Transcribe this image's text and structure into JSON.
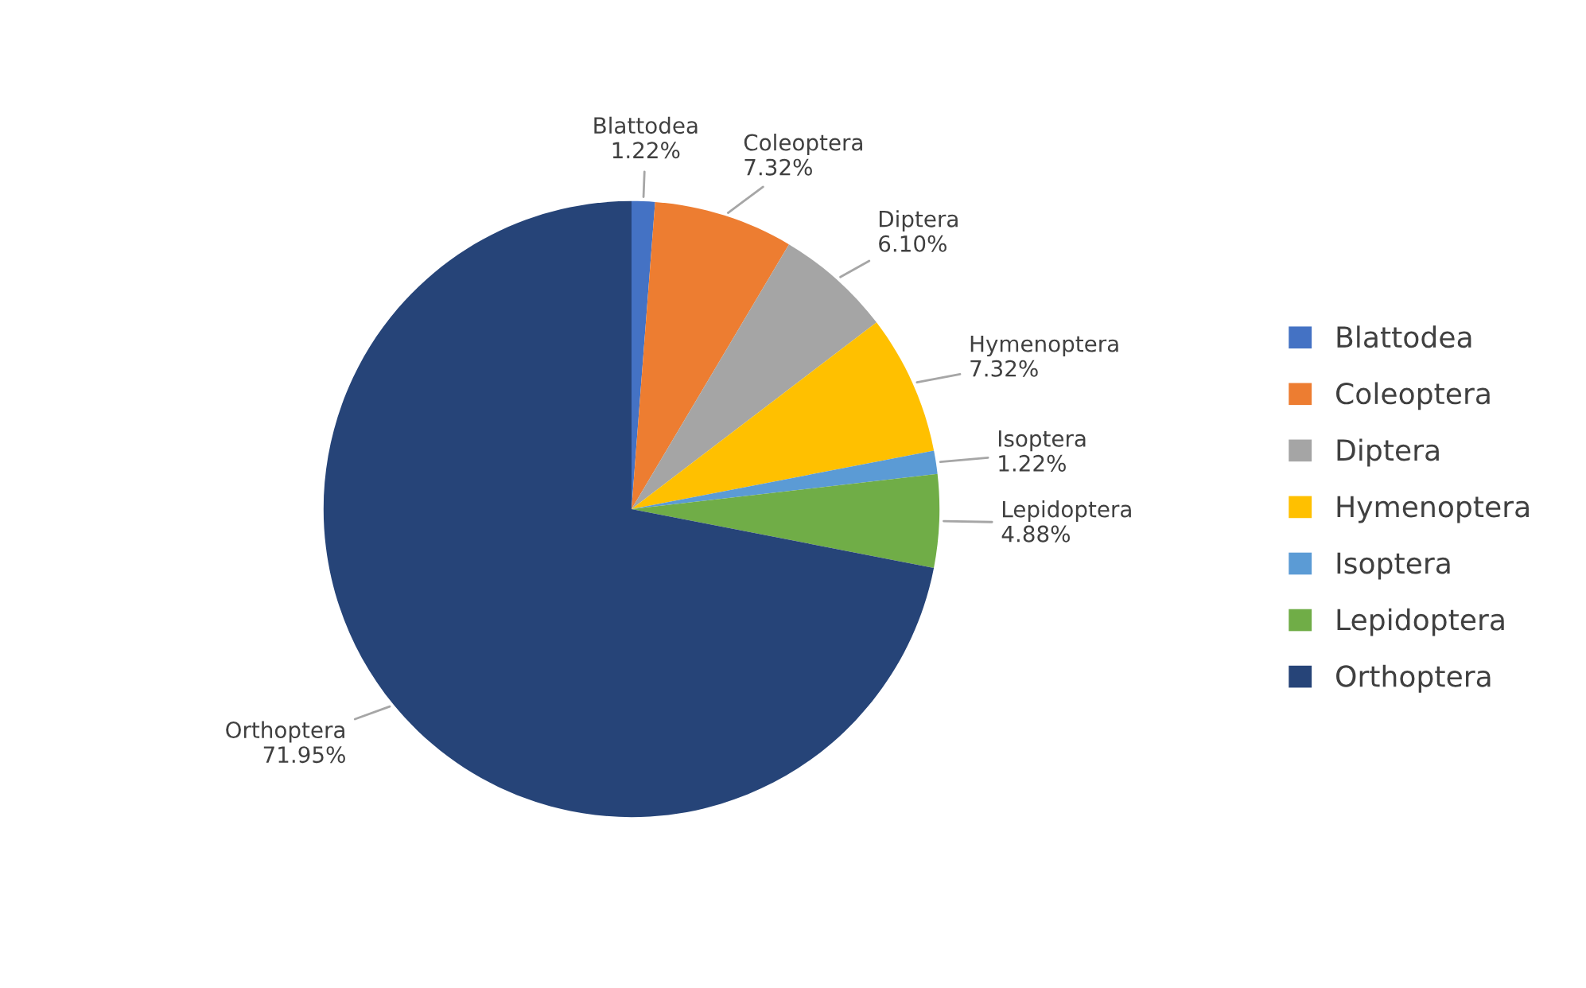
{
  "chart_data": {
    "type": "pie",
    "categories": [
      "Blattodea",
      "Coleoptera",
      "Diptera",
      "Hymenoptera",
      "Isoptera",
      "Lepidoptera",
      "Orthoptera"
    ],
    "values": [
      1.22,
      7.32,
      6.1,
      7.32,
      1.22,
      4.88,
      71.95
    ],
    "value_labels": [
      "1.22%",
      "7.32%",
      "6.10%",
      "7.32%",
      "1.22%",
      "4.88%",
      "71.95%"
    ],
    "colors": [
      "#4472c4",
      "#ed7d31",
      "#a5a5a5",
      "#ffc000",
      "#5b9bd5",
      "#70ad47",
      "#264478"
    ],
    "legend": "right"
  }
}
